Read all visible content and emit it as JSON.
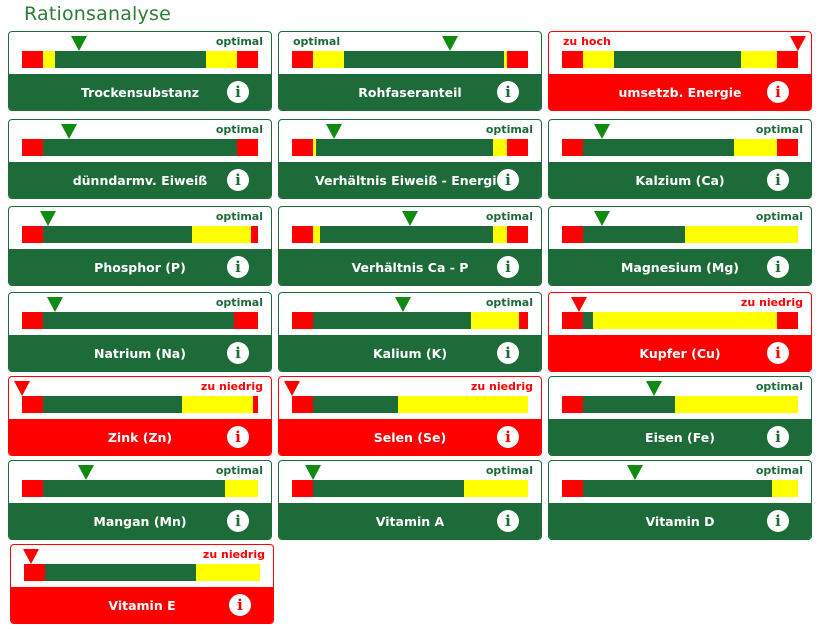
{
  "page": {
    "title": "Rationsanalyse"
  },
  "info_icon": "info-icon",
  "colors": {
    "green": "#1e6b3a",
    "red": "#ff0000",
    "yellow": "#ffff00",
    "marker_ok": "#118a11"
  },
  "cards": [
    {
      "name": "trockensubstanz",
      "label": "Trockensubstanz",
      "status": "optimal",
      "alert": false,
      "status_left": false,
      "marker": 0.24,
      "segments": [
        [
          "red",
          0.09
        ],
        [
          "yellow",
          0.05
        ],
        [
          "green",
          0.64
        ],
        [
          "yellow",
          0.13
        ],
        [
          "red",
          0.09
        ]
      ]
    },
    {
      "name": "rohfaseranteil",
      "label": "Rohfaseranteil",
      "status": "optimal",
      "alert": false,
      "status_left": true,
      "marker": 0.67,
      "segments": [
        [
          "red",
          0.09
        ],
        [
          "yellow",
          0.13
        ],
        [
          "green",
          0.68
        ],
        [
          "yellow",
          0.01
        ],
        [
          "red",
          0.09
        ]
      ]
    },
    {
      "name": "umsetzb-energie",
      "label": "umsetzb. Energie",
      "status": "zu hoch",
      "alert": true,
      "status_left": true,
      "marker": 1.0,
      "segments": [
        [
          "red",
          0.09
        ],
        [
          "yellow",
          0.13
        ],
        [
          "green",
          0.54
        ],
        [
          "yellow",
          0.15
        ],
        [
          "red",
          0.09
        ]
      ]
    },
    {
      "name": "duenndarm-eiweiss",
      "label": "dünndarmv. Eiweiß",
      "status": "optimal",
      "alert": false,
      "status_left": false,
      "marker": 0.2,
      "segments": [
        [
          "red",
          0.09
        ],
        [
          "green",
          0.82
        ],
        [
          "red",
          0.09
        ]
      ]
    },
    {
      "name": "verhaeltnis-eiweiss-energie",
      "label": "Verhältnis Eiweiß - Energie",
      "status": "optimal",
      "alert": false,
      "status_left": false,
      "marker": 0.18,
      "segments": [
        [
          "red",
          0.09
        ],
        [
          "yellow",
          0.01
        ],
        [
          "green",
          0.75
        ],
        [
          "yellow",
          0.06
        ],
        [
          "red",
          0.09
        ]
      ]
    },
    {
      "name": "kalzium",
      "label": "Kalzium (Ca)",
      "status": "optimal",
      "alert": false,
      "status_left": false,
      "marker": 0.17,
      "segments": [
        [
          "red",
          0.09
        ],
        [
          "green",
          0.64
        ],
        [
          "yellow",
          0.18
        ],
        [
          "red",
          0.09
        ]
      ]
    },
    {
      "name": "phosphor",
      "label": "Phosphor (P)",
      "status": "optimal",
      "alert": false,
      "status_left": false,
      "marker": 0.11,
      "segments": [
        [
          "red",
          0.09
        ],
        [
          "green",
          0.63
        ],
        [
          "yellow",
          0.25
        ],
        [
          "red",
          0.03
        ]
      ]
    },
    {
      "name": "verhaeltnis-ca-p",
      "label": "Verhältnis Ca - P",
      "status": "optimal",
      "alert": false,
      "status_left": false,
      "marker": 0.5,
      "segments": [
        [
          "red",
          0.09
        ],
        [
          "yellow",
          0.03
        ],
        [
          "green",
          0.73
        ],
        [
          "yellow",
          0.06
        ],
        [
          "red",
          0.09
        ]
      ]
    },
    {
      "name": "magnesium",
      "label": "Magnesium (Mg)",
      "status": "optimal",
      "alert": false,
      "status_left": false,
      "marker": 0.17,
      "segments": [
        [
          "red",
          0.09
        ],
        [
          "green",
          0.43
        ],
        [
          "yellow",
          0.48
        ]
      ]
    },
    {
      "name": "natrium",
      "label": "Natrium (Na)",
      "status": "optimal",
      "alert": false,
      "status_left": false,
      "marker": 0.14,
      "segments": [
        [
          "red",
          0.09
        ],
        [
          "green",
          0.81
        ],
        [
          "red",
          0.1
        ]
      ]
    },
    {
      "name": "kalium",
      "label": "Kalium (K)",
      "status": "optimal",
      "alert": false,
      "status_left": false,
      "marker": 0.47,
      "segments": [
        [
          "red",
          0.09
        ],
        [
          "green",
          0.67
        ],
        [
          "yellow",
          0.2
        ],
        [
          "red",
          0.04
        ]
      ]
    },
    {
      "name": "kupfer",
      "label": "Kupfer (Cu)",
      "status": "zu niedrig",
      "alert": true,
      "status_left": false,
      "marker": 0.07,
      "segments": [
        [
          "red",
          0.09
        ],
        [
          "green",
          0.04
        ],
        [
          "yellow",
          0.78
        ],
        [
          "red",
          0.09
        ]
      ]
    },
    {
      "name": "zink",
      "label": "Zink (Zn)",
      "status": "zu niedrig",
      "alert": true,
      "status_left": false,
      "marker": 0.0,
      "segments": [
        [
          "red",
          0.09
        ],
        [
          "green",
          0.59
        ],
        [
          "yellow",
          0.3
        ],
        [
          "red",
          0.02
        ]
      ]
    },
    {
      "name": "selen",
      "label": "Selen (Se)",
      "status": "zu niedrig",
      "alert": true,
      "status_left": false,
      "marker": 0.0,
      "segments": [
        [
          "red",
          0.09
        ],
        [
          "green",
          0.36
        ],
        [
          "yellow",
          0.55
        ]
      ]
    },
    {
      "name": "eisen",
      "label": "Eisen (Fe)",
      "status": "optimal",
      "alert": false,
      "status_left": false,
      "marker": 0.39,
      "segments": [
        [
          "red",
          0.09
        ],
        [
          "green",
          0.39
        ],
        [
          "yellow",
          0.52
        ]
      ]
    },
    {
      "name": "mangan",
      "label": "Mangan (Mn)",
      "status": "optimal",
      "alert": false,
      "status_left": false,
      "marker": 0.27,
      "segments": [
        [
          "red",
          0.09
        ],
        [
          "green",
          0.77
        ],
        [
          "yellow",
          0.14
        ]
      ]
    },
    {
      "name": "vitamin-a",
      "label": "Vitamin A",
      "status": "optimal",
      "alert": false,
      "status_left": false,
      "marker": 0.09,
      "segments": [
        [
          "red",
          0.09
        ],
        [
          "green",
          0.64
        ],
        [
          "yellow",
          0.27
        ]
      ]
    },
    {
      "name": "vitamin-d",
      "label": "Vitamin D",
      "status": "optimal",
      "alert": false,
      "status_left": false,
      "marker": 0.31,
      "segments": [
        [
          "red",
          0.09
        ],
        [
          "green",
          0.8
        ],
        [
          "yellow",
          0.11
        ]
      ]
    },
    {
      "name": "vitamin-e",
      "label": "Vitamin E",
      "status": "zu niedrig",
      "alert": true,
      "status_left": false,
      "marker": 0.03,
      "segments": [
        [
          "red",
          0.09
        ],
        [
          "green",
          0.64
        ],
        [
          "yellow",
          0.27
        ]
      ]
    }
  ]
}
